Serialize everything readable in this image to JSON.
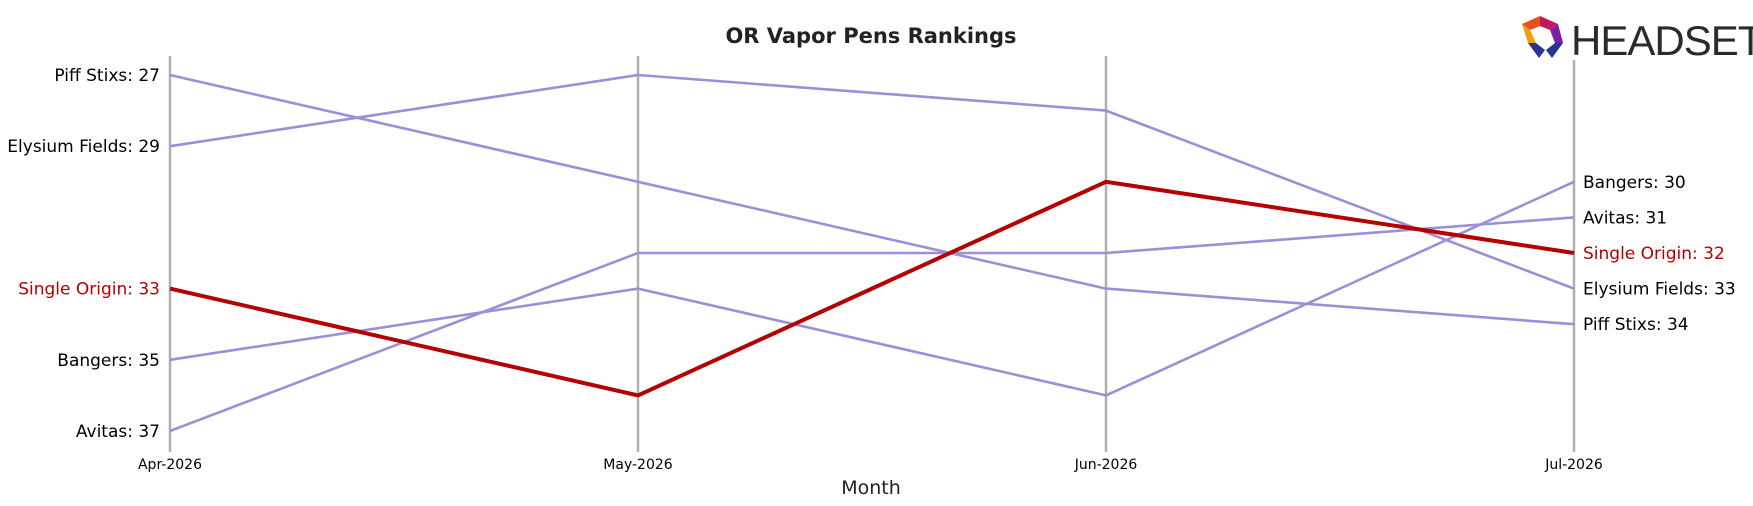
{
  "chart_data": {
    "type": "line",
    "title": "OR Vapor Pens Rankings",
    "xlabel": "Month",
    "ylabel": "",
    "categories": [
      "Apr-2026",
      "May-2026",
      "Jun-2026",
      "Jul-2026"
    ],
    "ylim": [
      26,
      38
    ],
    "y_inverted": true,
    "grid": false,
    "highlight": "Single Origin",
    "highlight_color": "#b30000",
    "base_color": "#9b8fd9",
    "axis_color": "#b0b0b0",
    "series": [
      {
        "name": "Piff Stixs",
        "values": [
          27,
          30,
          33,
          34
        ]
      },
      {
        "name": "Elysium Fields",
        "values": [
          29,
          27,
          28,
          33
        ]
      },
      {
        "name": "Single Origin",
        "values": [
          33,
          36,
          30,
          32
        ]
      },
      {
        "name": "Bangers",
        "values": [
          35,
          33,
          36,
          30
        ]
      },
      {
        "name": "Avitas",
        "values": [
          37,
          32,
          32,
          31
        ]
      }
    ],
    "left_labels": [
      "Piff Stixs: 27",
      "Elysium Fields: 29",
      "Single Origin: 33",
      "Bangers: 35",
      "Avitas: 37"
    ],
    "right_labels": [
      "Bangers: 30",
      "Avitas: 31",
      "Single Origin: 32",
      "Elysium Fields: 33",
      "Piff Stixs: 34"
    ]
  },
  "logo": {
    "text": "HEADSET",
    "colors": [
      "#e94e1b",
      "#c2185b",
      "#7b1fa2",
      "#283593"
    ]
  }
}
